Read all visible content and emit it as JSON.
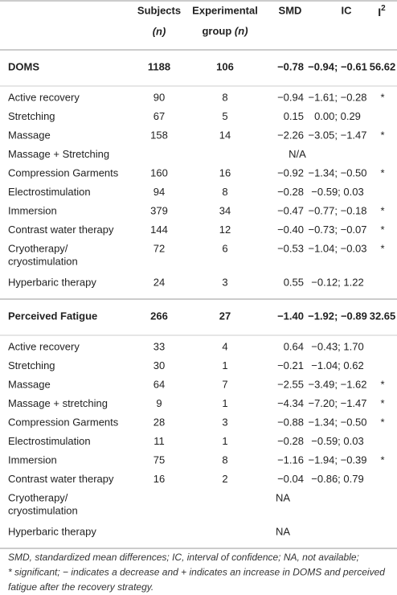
{
  "header": {
    "subjects": [
      "Subjects",
      "(n)"
    ],
    "group": [
      "Experimental",
      "group",
      "(n)"
    ],
    "smd": "SMD",
    "ic": "IC",
    "i2": [
      "I",
      "2"
    ]
  },
  "sections": [
    {
      "title": "DOMS",
      "subjects": "1188",
      "group": "106",
      "smd": "−0.78",
      "ic": "−0.94; −0.61",
      "i2": "56.62",
      "rows": [
        {
          "label": [
            "Active recovery"
          ],
          "subjects": "90",
          "group": "8",
          "smd": "−0.94",
          "ic": "−1.61; −0.28",
          "i2": "*"
        },
        {
          "label": [
            "Stretching"
          ],
          "subjects": "67",
          "group": "5",
          "smd": "0.15",
          "ic": "0.00; 0.29"
        },
        {
          "label": [
            "Massage"
          ],
          "subjects": "158",
          "group": "14",
          "smd": "−2.26",
          "ic": "−3.05; −1.47",
          "i2": "*"
        },
        {
          "label": [
            "Massage + Stretching"
          ],
          "na": "N/A"
        },
        {
          "label": [
            "Compression Garments"
          ],
          "subjects": "160",
          "group": "16",
          "smd": "−0.92",
          "ic": "−1.34; −0.50",
          "i2": "*"
        },
        {
          "label": [
            "Electrostimulation"
          ],
          "subjects": "94",
          "group": "8",
          "smd": "−0.28",
          "ic": "−0.59; 0.03"
        },
        {
          "label": [
            "Immersion"
          ],
          "subjects": "379",
          "group": "34",
          "smd": "−0.47",
          "ic": "−0.77; −0.18",
          "i2": "*"
        },
        {
          "label": [
            "Contrast water therapy"
          ],
          "subjects": "144",
          "group": "12",
          "smd": "−0.40",
          "ic": "−0.73; −0.07",
          "i2": "*"
        },
        {
          "label": [
            "Cryotherapy/",
            "cryostimulation"
          ],
          "subjects": "72",
          "group": "6",
          "smd": "−0.53",
          "ic": "−1.04; −0.03",
          "i2": "*"
        },
        {
          "label": [
            "Hyperbaric therapy"
          ],
          "subjects": "24",
          "group": "3",
          "smd": "0.55",
          "ic": "−0.12; 1.22"
        }
      ]
    },
    {
      "title": "Perceived Fatigue",
      "subjects": "266",
      "group": "27",
      "smd": "−1.40",
      "ic": "−1.92; −0.89",
      "i2": "32.65",
      "rows": [
        {
          "label": [
            "Active recovery"
          ],
          "subjects": "33",
          "group": "4",
          "smd": "0.64",
          "ic": "−0.43; 1.70"
        },
        {
          "label": [
            "Stretching"
          ],
          "subjects": "30",
          "group": "1",
          "smd": "−0.21",
          "ic": "−1.04; 0.62"
        },
        {
          "label": [
            "Massage"
          ],
          "subjects": "64",
          "group": "7",
          "smd": "−2.55",
          "ic": "−3.49; −1.62",
          "i2": "*"
        },
        {
          "label": [
            "Massage + stretching"
          ],
          "subjects": "9",
          "group": "1",
          "smd": "−4.34",
          "ic": "−7.20; −1.47",
          "i2": "*"
        },
        {
          "label": [
            "Compression Garments"
          ],
          "subjects": "28",
          "group": "3",
          "smd": "−0.88",
          "ic": "−1.34; −0.50",
          "i2": "*"
        },
        {
          "label": [
            "Electrostimulation"
          ],
          "subjects": "11",
          "group": "1",
          "smd": "−0.28",
          "ic": "−0.59; 0.03"
        },
        {
          "label": [
            "Immersion"
          ],
          "subjects": "75",
          "group": "8",
          "smd": "−1.16",
          "ic": "−1.94; −0.39",
          "i2": "*"
        },
        {
          "label": [
            "Contrast water therapy"
          ],
          "subjects": "16",
          "group": "2",
          "smd": "−0.04",
          "ic": "−0.86; 0.79"
        },
        {
          "label": [
            "Cryotherapy/",
            "cryostimulation"
          ],
          "na": "NA"
        },
        {
          "label": [
            "Hyperbaric therapy"
          ],
          "na": "NA"
        }
      ]
    }
  ],
  "footnote": [
    "SMD, standardized mean differences; IC, interval of confidence; NA, not available;",
    "* significant; − indicates a decrease and + indicates an increase in DOMS and perceived",
    "fatigue after the recovery strategy."
  ]
}
